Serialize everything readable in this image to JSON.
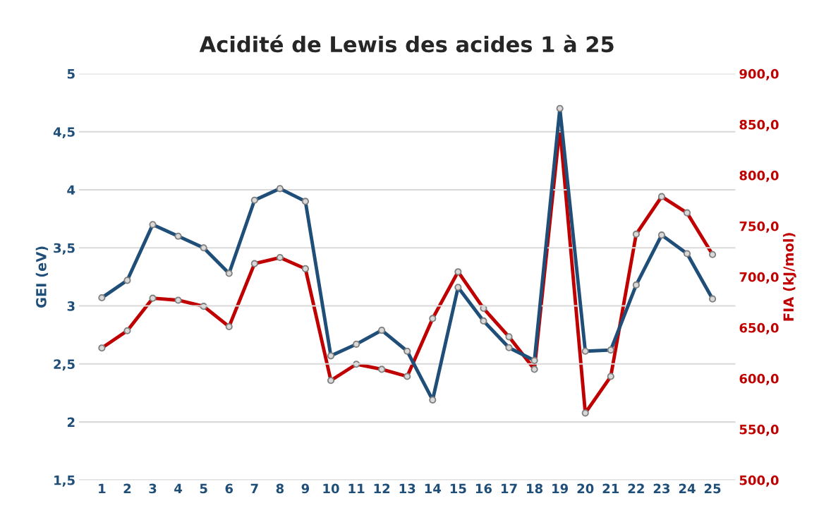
{
  "chart_data": {
    "type": "line",
    "title": "Acidité de Lewis des acides 1 à 25",
    "ylabel": "GEI (eV)",
    "y2label": "FIA (kJ/mol)",
    "categories": [
      "1",
      "2",
      "3",
      "4",
      "5",
      "6",
      "7",
      "8",
      "9",
      "10",
      "11",
      "12",
      "13",
      "14",
      "15",
      "16",
      "17",
      "18",
      "19",
      "20",
      "21",
      "22",
      "23",
      "24",
      "25"
    ],
    "series": [
      {
        "color": "#1f4e79",
        "values": [
          3.07,
          3.22,
          3.7,
          3.6,
          3.5,
          3.28,
          3.91,
          4.01,
          3.9,
          2.57,
          2.67,
          2.79,
          2.61,
          2.19,
          3.16,
          2.87,
          2.64,
          2.53,
          4.7,
          2.61,
          2.62,
          3.18,
          3.61,
          3.45,
          3.06
        ]
      },
      {
        "color": "#c00000",
        "axis": "y2",
        "values": [
          630,
          647,
          679,
          677,
          671,
          651,
          713,
          719,
          708,
          598,
          614,
          609,
          602,
          659,
          705,
          669,
          641,
          609,
          847,
          566,
          602,
          742,
          779,
          763,
          722
        ]
      }
    ],
    "ylim": [
      1.5,
      5
    ],
    "yticks": [
      {
        "value": 1.5,
        "label": "1,5"
      },
      2,
      {
        "value": 2.5,
        "label": "2,5"
      },
      3,
      {
        "value": 3.5,
        "label": "3,5"
      },
      4,
      {
        "value": 4.5,
        "label": "4,5"
      },
      5
    ],
    "y2lim": [
      500,
      900
    ],
    "y2ticks": [
      {
        "value": 500,
        "label": "500,0"
      },
      {
        "value": 550,
        "label": "550,0"
      },
      {
        "value": 600,
        "label": "600,0"
      },
      {
        "value": 650,
        "label": "650,0"
      },
      {
        "value": 700,
        "label": "700,0"
      },
      {
        "value": 750,
        "label": "750,0"
      },
      {
        "value": 800,
        "label": "800,0"
      },
      {
        "value": 850,
        "label": "850,0"
      },
      {
        "value": 900,
        "label": "900,0"
      }
    ],
    "grid": "y",
    "marker": "circle",
    "line_style": "solid",
    "legend": false
  }
}
